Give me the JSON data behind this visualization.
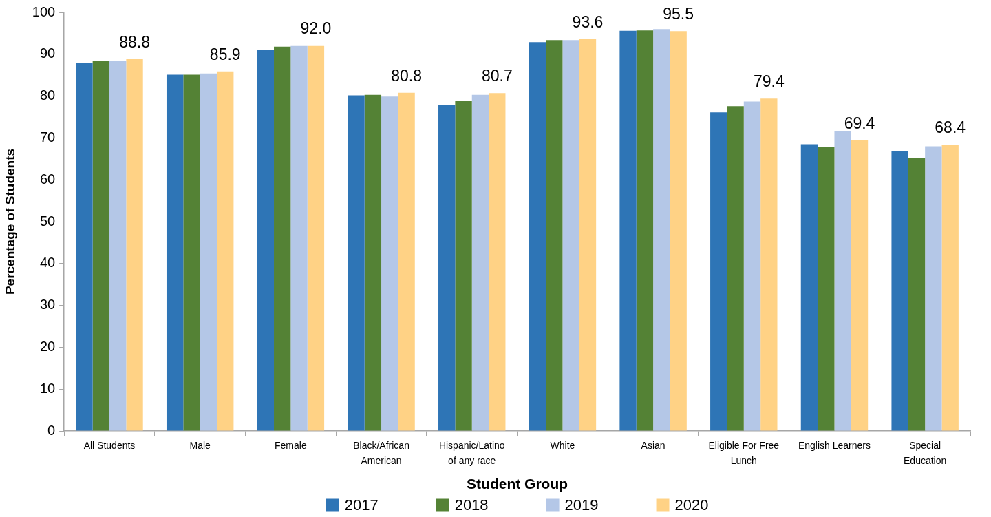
{
  "chart_data": {
    "type": "bar",
    "xlabel": "Student Group",
    "ylabel": "Percentage of Students",
    "categories": [
      "All Students",
      "Male",
      "Female",
      "Black/African American",
      "Hispanic/Latino of any race",
      "White",
      "Asian",
      "Eligible For Free Lunch",
      "English Learners",
      "Special Education"
    ],
    "series": [
      {
        "name": "2017",
        "color": "#2e75b6",
        "values": [
          88.0,
          85.1,
          91.0,
          80.2,
          77.8,
          92.9,
          95.6,
          76.1,
          68.5,
          66.8
        ]
      },
      {
        "name": "2018",
        "color": "#548235",
        "values": [
          88.4,
          85.1,
          91.8,
          80.3,
          78.9,
          93.4,
          95.7,
          77.6,
          67.8,
          65.2
        ]
      },
      {
        "name": "2019",
        "color": "#b4c7e7",
        "values": [
          88.5,
          85.4,
          92.0,
          79.9,
          80.3,
          93.4,
          96.0,
          78.7,
          71.6,
          68.0
        ]
      },
      {
        "name": "2020",
        "color": "#ffd285",
        "values": [
          88.8,
          85.9,
          92.0,
          80.8,
          80.7,
          93.6,
          95.5,
          79.4,
          69.4,
          68.4
        ],
        "value_labels": [
          "88.8",
          "85.9",
          "92.0",
          "80.8",
          "80.7",
          "93.6",
          "95.5",
          "79.4",
          "69.4",
          "68.4"
        ]
      }
    ],
    "ylim": [
      0,
      100
    ],
    "yticks": [
      0,
      10,
      20,
      30,
      40,
      50,
      60,
      70,
      80,
      90,
      100
    ],
    "legend": "bottom"
  }
}
